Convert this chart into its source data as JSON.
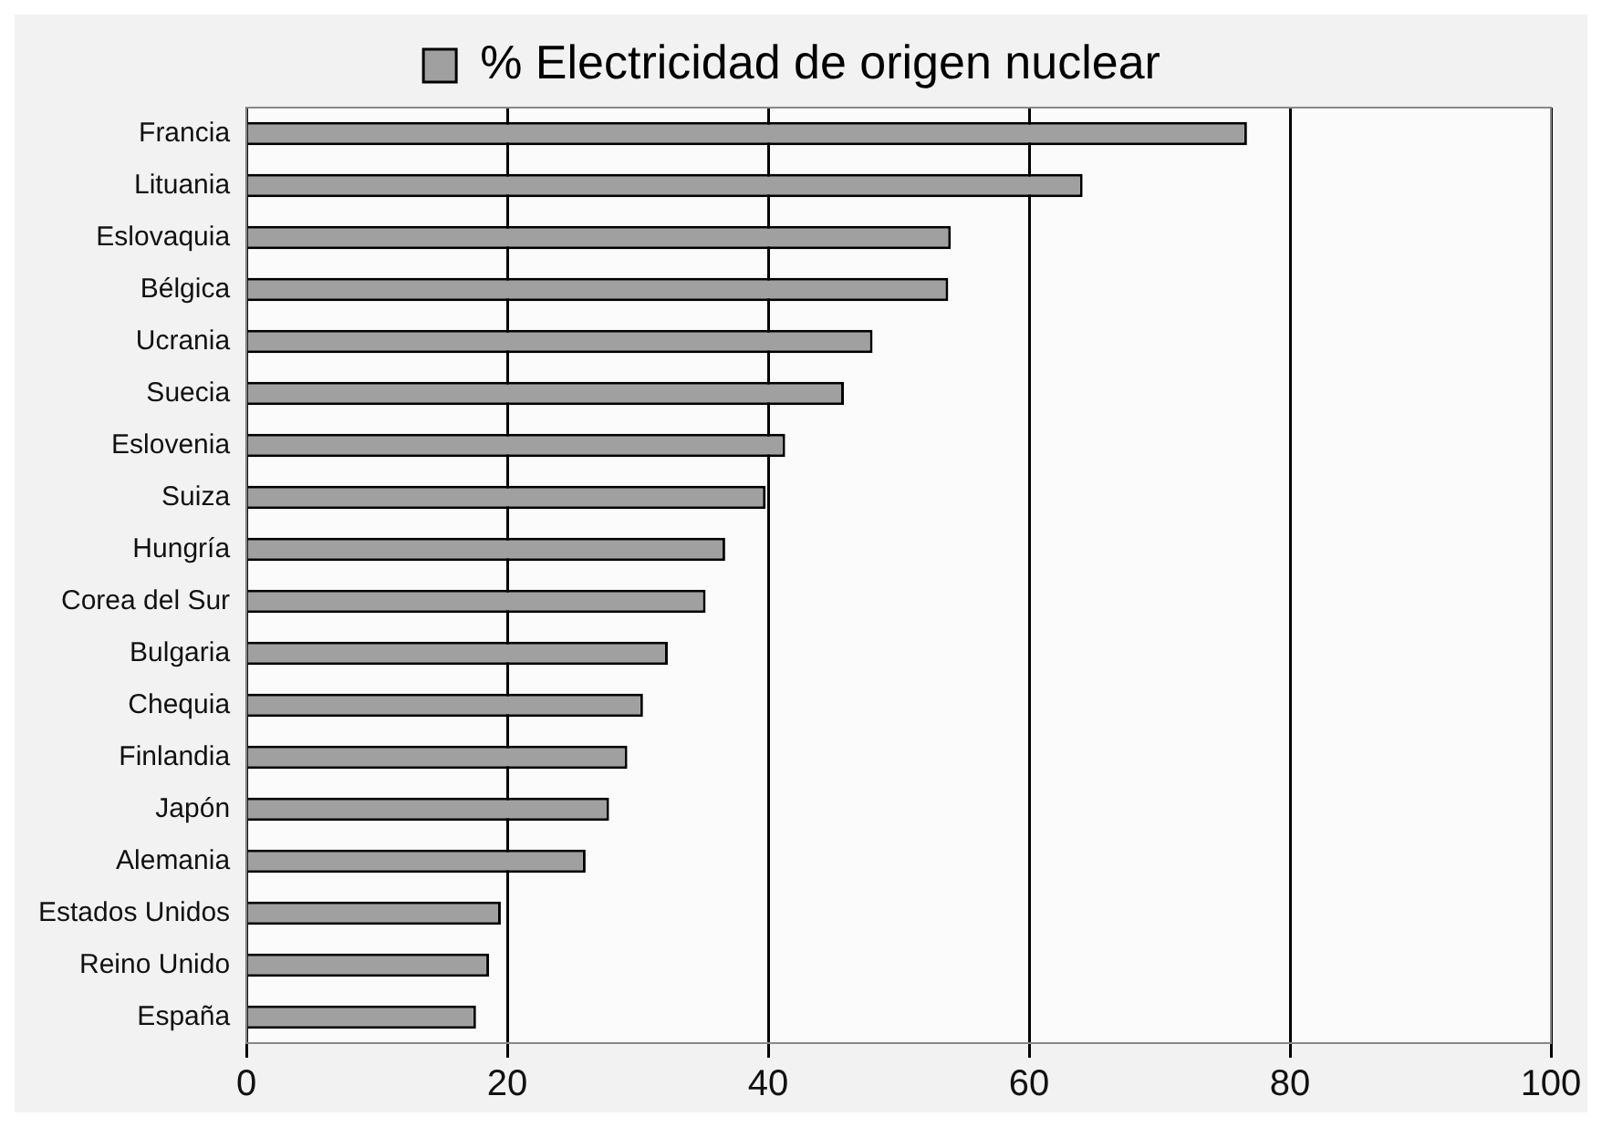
{
  "chart_data": {
    "type": "bar",
    "orientation": "horizontal",
    "categories": [
      "Francia",
      "Lituania",
      "Eslovaquia",
      "Bélgica",
      "Ucrania",
      "Suecia",
      "Eslovenia",
      "Suiza",
      "Hungría",
      "Corea del Sur",
      "Bulgaria",
      "Chequia",
      "Finlandia",
      "Japón",
      "Alemania",
      "Estados Unidos",
      "Reino Unido",
      "España"
    ],
    "series": [
      {
        "name": "% Electricidad de origen nuclear",
        "color": "#a0a0a0",
        "values": [
          76.7,
          64.1,
          54.0,
          53.8,
          48.0,
          45.8,
          41.3,
          39.8,
          36.7,
          35.2,
          32.3,
          30.4,
          29.2,
          27.8,
          26.0,
          19.5,
          18.6,
          17.6
        ]
      }
    ],
    "xlim": [
      0,
      100
    ],
    "xticks": [
      0,
      20,
      40,
      60,
      80,
      100
    ],
    "grid": "x",
    "legend": "top"
  }
}
